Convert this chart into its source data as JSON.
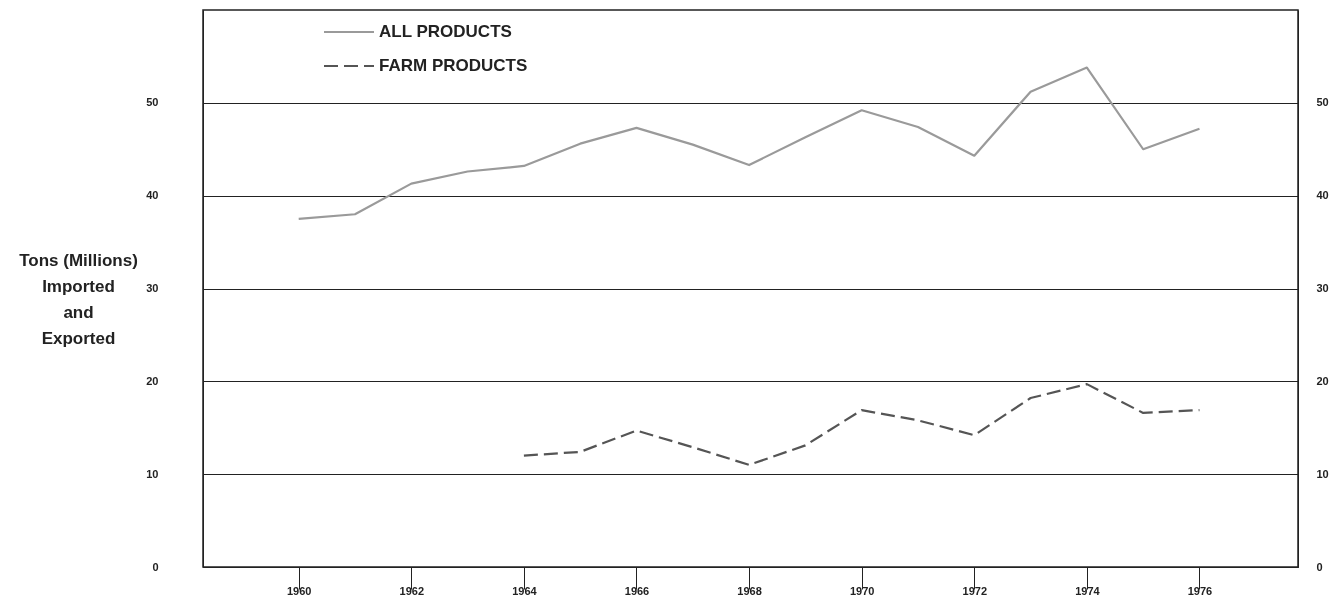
{
  "chart_data": {
    "type": "line",
    "ylabel": "Tons (Millions)\nImported\nand\nExported",
    "x": [
      1960,
      1961,
      1962,
      1963,
      1964,
      1965,
      1966,
      1967,
      1968,
      1969,
      1970,
      1971,
      1972,
      1973,
      1974,
      1975,
      1976
    ],
    "series": [
      {
        "name": "ALL PRODUCTS",
        "color": "#9a9a9a",
        "line_style": "solid",
        "values": [
          37.5,
          38,
          41.3,
          42.6,
          43.2,
          45.6,
          47.3,
          45.5,
          43.3,
          46.3,
          49.2,
          47.4,
          44.3,
          51.2,
          53.8,
          45,
          47.2
        ]
      },
      {
        "name": "FARM PRODUCTS",
        "color": "#555555",
        "line_style": "dashed",
        "values": [
          null,
          null,
          null,
          null,
          12,
          12.4,
          14.7,
          12.9,
          11,
          13.1,
          16.9,
          15.8,
          14.2,
          18.2,
          19.7,
          16.6,
          16.9
        ]
      }
    ],
    "xlim": [
      1958.3,
      1977.75
    ],
    "xticks": [
      1960,
      1962,
      1964,
      1966,
      1968,
      1970,
      1972,
      1974,
      1976
    ],
    "ylim": [
      0,
      60
    ],
    "yticks": [
      0,
      10,
      20,
      30,
      40,
      50
    ],
    "y2lim": [
      0,
      60
    ],
    "y2ticks": [
      0,
      10,
      20,
      30,
      40,
      50
    ],
    "grid": "y",
    "legend": "top left"
  }
}
